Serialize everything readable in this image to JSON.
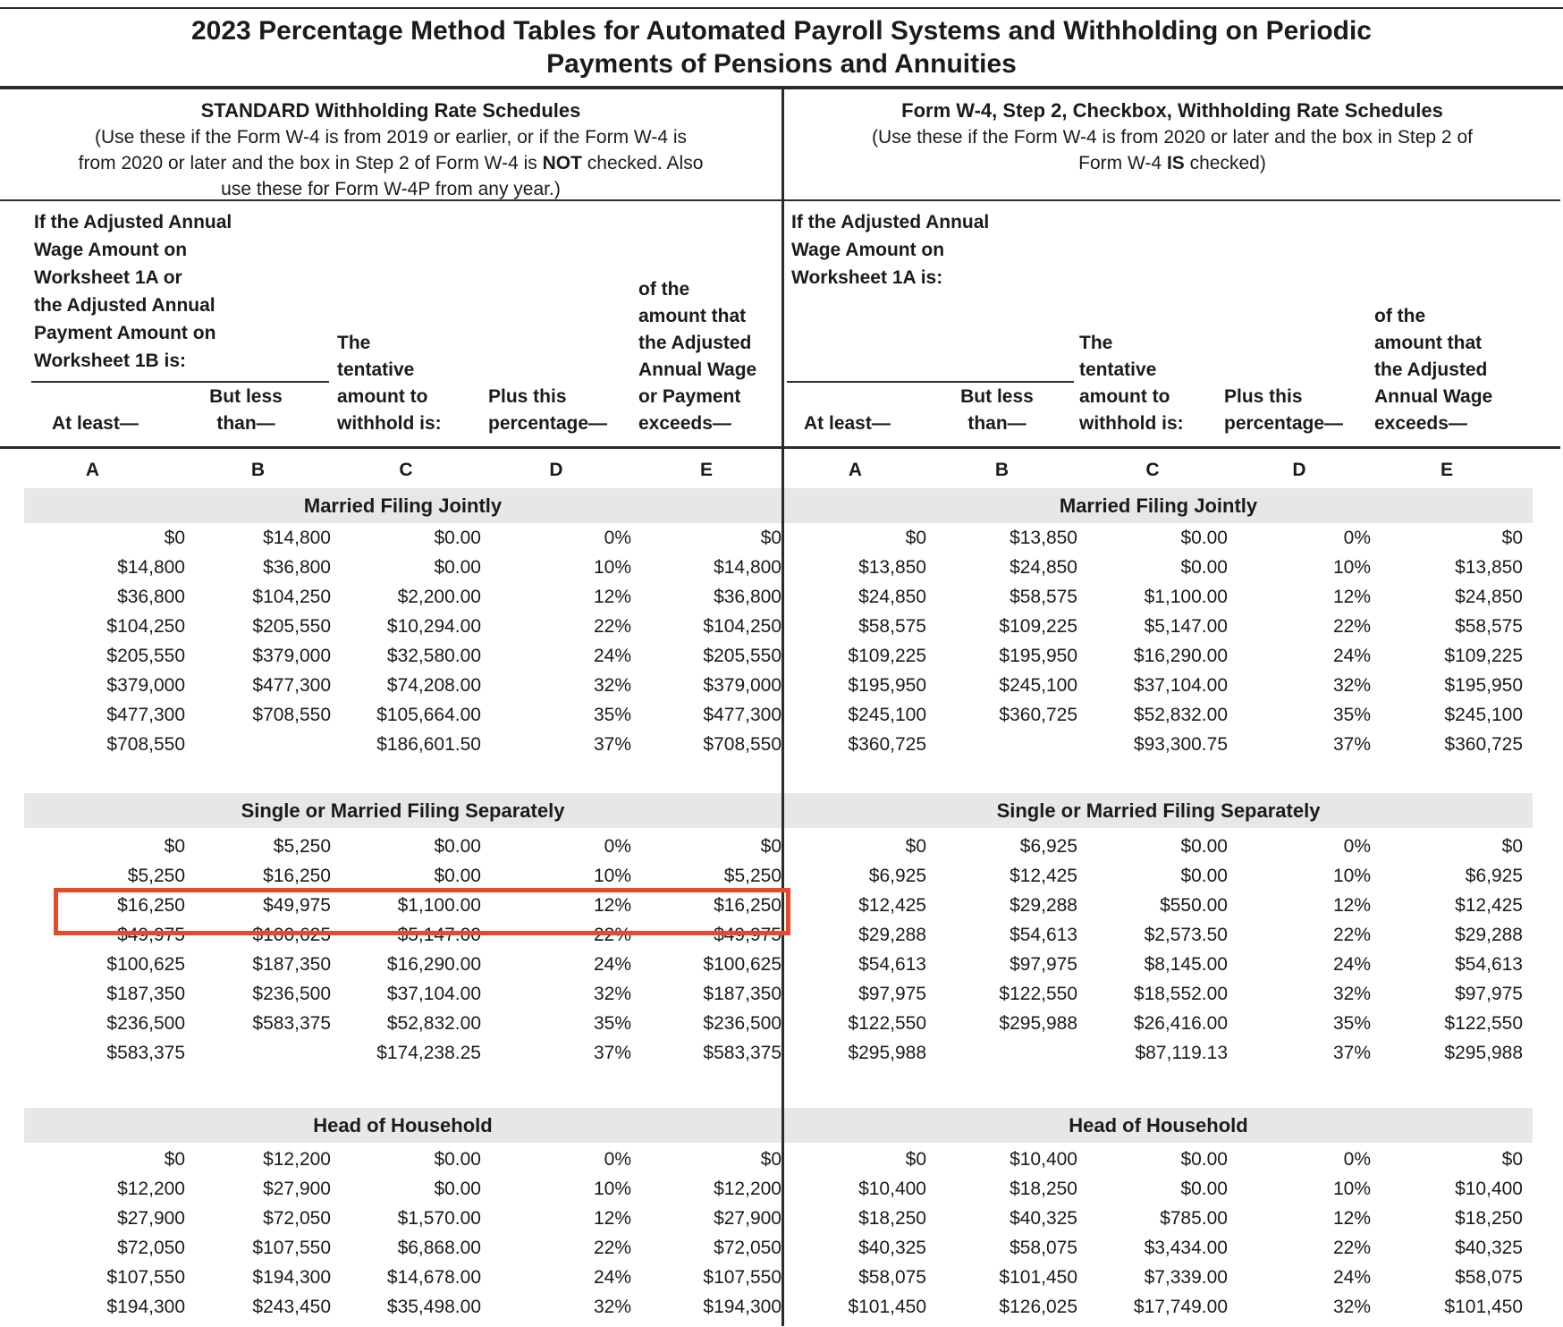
{
  "title_line1": "2023 Percentage Method Tables for Automated Payroll Systems and Withholding on Periodic",
  "title_line2": "Payments of Pensions and Annuities",
  "standard": {
    "heading": "STANDARD Withholding Rate Schedules",
    "desc_line1": "(Use these if the Form W-4 is from 2019 or earlier, or if the Form W-4 is",
    "desc_line2_pre": "from 2020 or later and the box in Step 2 of Form W-4 is ",
    "desc_line2_bold": "NOT",
    "desc_line2_post": " checked. Also",
    "desc_line3": "use these for Form W-4P from any year.)",
    "intro": [
      "If the Adjusted Annual",
      "Wage Amount on",
      "Worksheet 1A or",
      "the Adjusted Annual",
      "Payment Amount on",
      "Worksheet 1B is:"
    ]
  },
  "checkbox": {
    "heading": "Form W-4, Step 2, Checkbox, Withholding Rate Schedules",
    "desc_line1": "(Use these if the Form W-4 is from 2020 or later and the box in Step 2 of",
    "desc_line2_pre": "Form W-4 ",
    "desc_line2_bold": "IS",
    "desc_line2_post": " checked)",
    "intro": [
      "If the Adjusted Annual",
      "Wage Amount on",
      "Worksheet 1A is:"
    ]
  },
  "headers": {
    "at_least": "At least—",
    "but_less": [
      "But less",
      "than—"
    ],
    "col_c": [
      "The",
      "tentative",
      "amount to",
      "withhold is:"
    ],
    "col_d": [
      "Plus this",
      "percentage—"
    ],
    "col_e_left": [
      "of the",
      "amount that",
      "the Adjusted",
      "Annual Wage",
      "or Payment",
      "exceeds—"
    ],
    "col_e_right": [
      "of the",
      "amount that",
      "the Adjusted",
      "Annual Wage",
      "exceeds—"
    ]
  },
  "letters": [
    "A",
    "B",
    "C",
    "D",
    "E"
  ],
  "sections": {
    "mfj": "Married Filing Jointly",
    "single": "Single or Married Filing Separately",
    "hoh": "Head of Household"
  },
  "tables": {
    "standard_mfj": [
      [
        "$0",
        "$14,800",
        "$0.00",
        "0%",
        "$0"
      ],
      [
        "$14,800",
        "$36,800",
        "$0.00",
        "10%",
        "$14,800"
      ],
      [
        "$36,800",
        "$104,250",
        "$2,200.00",
        "12%",
        "$36,800"
      ],
      [
        "$104,250",
        "$205,550",
        "$10,294.00",
        "22%",
        "$104,250"
      ],
      [
        "$205,550",
        "$379,000",
        "$32,580.00",
        "24%",
        "$205,550"
      ],
      [
        "$379,000",
        "$477,300",
        "$74,208.00",
        "32%",
        "$379,000"
      ],
      [
        "$477,300",
        "$708,550",
        "$105,664.00",
        "35%",
        "$477,300"
      ],
      [
        "$708,550",
        "",
        "$186,601.50",
        "37%",
        "$708,550"
      ]
    ],
    "standard_single": [
      [
        "$0",
        "$5,250",
        "$0.00",
        "0%",
        "$0"
      ],
      [
        "$5,250",
        "$16,250",
        "$0.00",
        "10%",
        "$5,250"
      ],
      [
        "$16,250",
        "$49,975",
        "$1,100.00",
        "12%",
        "$16,250"
      ],
      [
        "$49,975",
        "$100,625",
        "$5,147.00",
        "22%",
        "$49,975"
      ],
      [
        "$100,625",
        "$187,350",
        "$16,290.00",
        "24%",
        "$100,625"
      ],
      [
        "$187,350",
        "$236,500",
        "$37,104.00",
        "32%",
        "$187,350"
      ],
      [
        "$236,500",
        "$583,375",
        "$52,832.00",
        "35%",
        "$236,500"
      ],
      [
        "$583,375",
        "",
        "$174,238.25",
        "37%",
        "$583,375"
      ]
    ],
    "standard_hoh": [
      [
        "$0",
        "$12,200",
        "$0.00",
        "0%",
        "$0"
      ],
      [
        "$12,200",
        "$27,900",
        "$0.00",
        "10%",
        "$12,200"
      ],
      [
        "$27,900",
        "$72,050",
        "$1,570.00",
        "12%",
        "$27,900"
      ],
      [
        "$72,050",
        "$107,550",
        "$6,868.00",
        "22%",
        "$72,050"
      ],
      [
        "$107,550",
        "$194,300",
        "$14,678.00",
        "24%",
        "$107,550"
      ],
      [
        "$194,300",
        "$243,450",
        "$35,498.00",
        "32%",
        "$194,300"
      ]
    ],
    "checkbox_mfj": [
      [
        "$0",
        "$13,850",
        "$0.00",
        "0%",
        "$0"
      ],
      [
        "$13,850",
        "$24,850",
        "$0.00",
        "10%",
        "$13,850"
      ],
      [
        "$24,850",
        "$58,575",
        "$1,100.00",
        "12%",
        "$24,850"
      ],
      [
        "$58,575",
        "$109,225",
        "$5,147.00",
        "22%",
        "$58,575"
      ],
      [
        "$109,225",
        "$195,950",
        "$16,290.00",
        "24%",
        "$109,225"
      ],
      [
        "$195,950",
        "$245,100",
        "$37,104.00",
        "32%",
        "$195,950"
      ],
      [
        "$245,100",
        "$360,725",
        "$52,832.00",
        "35%",
        "$245,100"
      ],
      [
        "$360,725",
        "",
        "$93,300.75",
        "37%",
        "$360,725"
      ]
    ],
    "checkbox_single": [
      [
        "$0",
        "$6,925",
        "$0.00",
        "0%",
        "$0"
      ],
      [
        "$6,925",
        "$12,425",
        "$0.00",
        "10%",
        "$6,925"
      ],
      [
        "$12,425",
        "$29,288",
        "$550.00",
        "12%",
        "$12,425"
      ],
      [
        "$29,288",
        "$54,613",
        "$2,573.50",
        "22%",
        "$29,288"
      ],
      [
        "$54,613",
        "$97,975",
        "$8,145.00",
        "24%",
        "$54,613"
      ],
      [
        "$97,975",
        "$122,550",
        "$18,552.00",
        "32%",
        "$97,975"
      ],
      [
        "$122,550",
        "$295,988",
        "$26,416.00",
        "35%",
        "$122,550"
      ],
      [
        "$295,988",
        "",
        "$87,119.13",
        "37%",
        "$295,988"
      ]
    ],
    "checkbox_hoh": [
      [
        "$0",
        "$10,400",
        "$0.00",
        "0%",
        "$0"
      ],
      [
        "$10,400",
        "$18,250",
        "$0.00",
        "10%",
        "$10,400"
      ],
      [
        "$18,250",
        "$40,325",
        "$785.00",
        "12%",
        "$18,250"
      ],
      [
        "$40,325",
        "$58,075",
        "$3,434.00",
        "22%",
        "$40,325"
      ],
      [
        "$58,075",
        "$101,450",
        "$7,339.00",
        "24%",
        "$58,075"
      ],
      [
        "$101,450",
        "$126,025",
        "$17,749.00",
        "32%",
        "$101,450"
      ]
    ]
  },
  "highlight": {
    "table": "standard_single",
    "row_index": 2,
    "row_values": [
      "$16,250",
      "$49,975",
      "$1,100.00",
      "12%",
      "$16,250"
    ],
    "color": "#e8492b"
  }
}
